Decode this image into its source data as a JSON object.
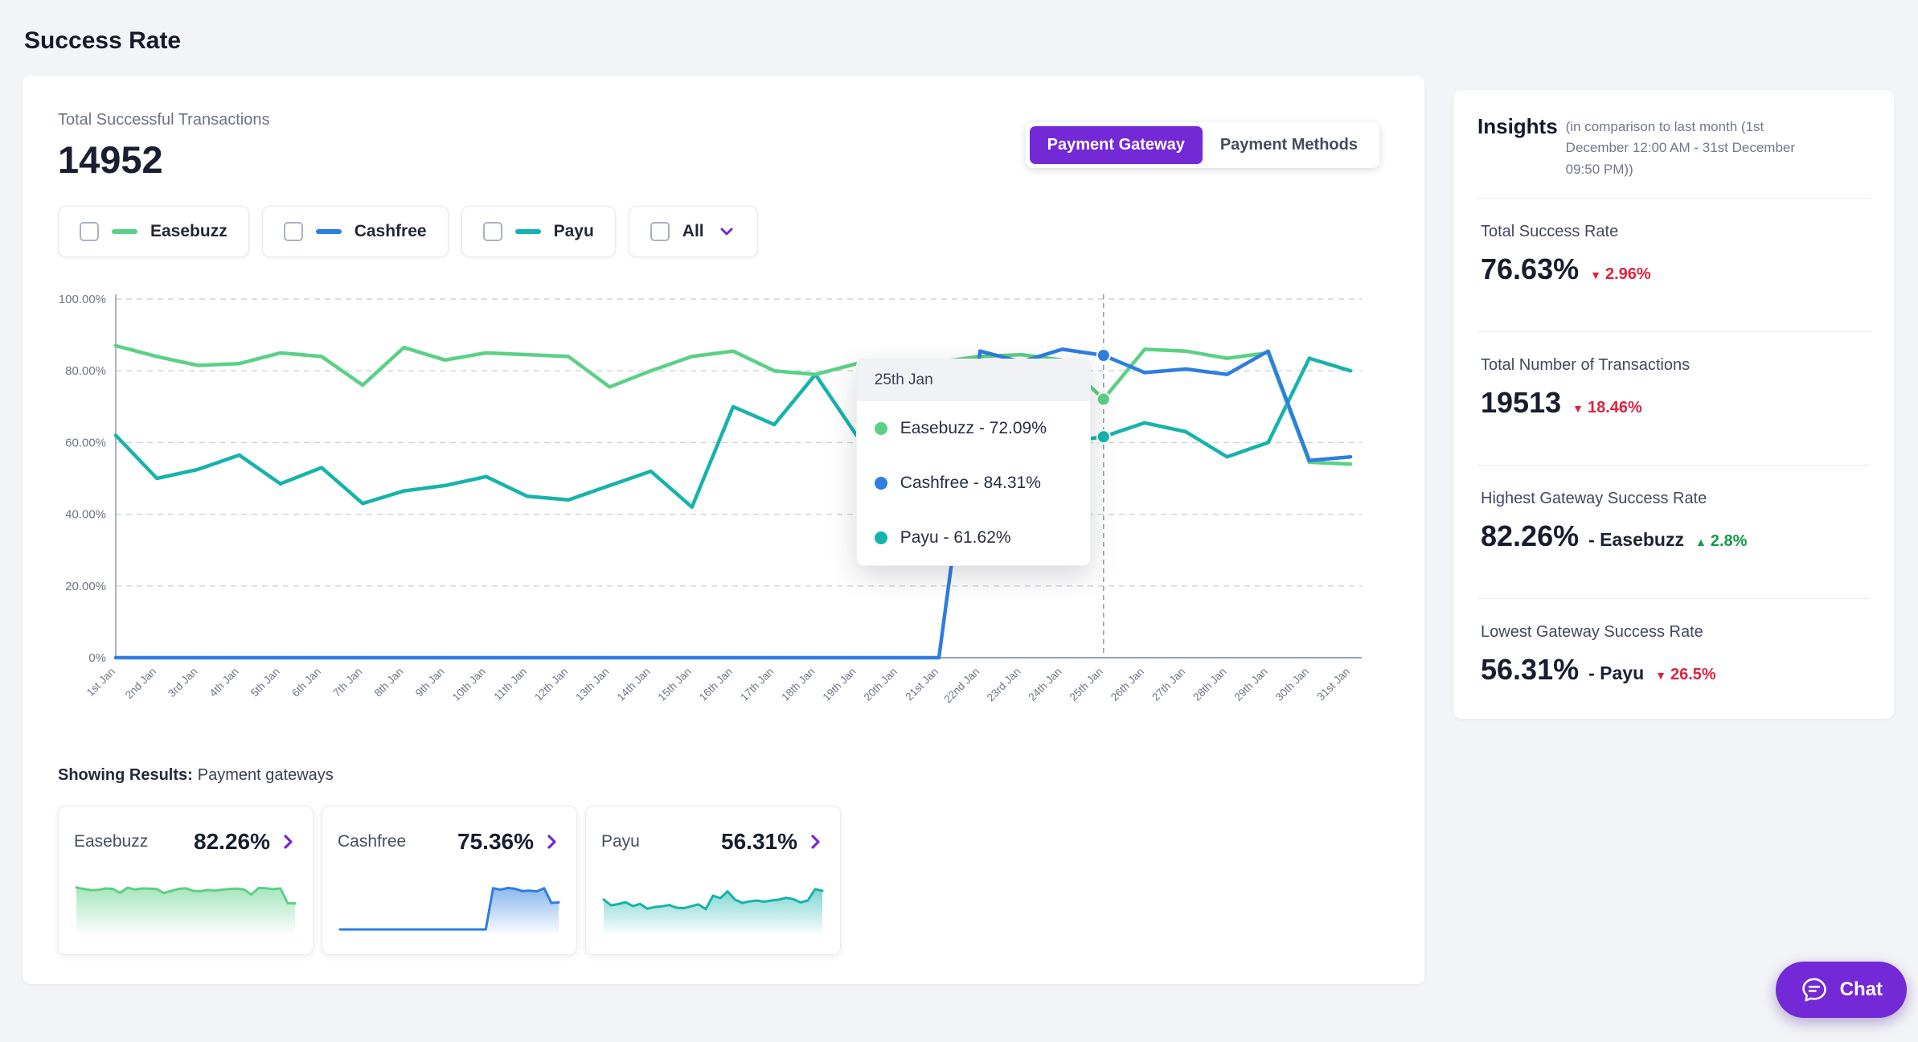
{
  "page": {
    "title": "Success Rate"
  },
  "summary": {
    "label": "Total Successful Transactions",
    "value": "14952"
  },
  "toggle": {
    "options": [
      "Payment Gateway",
      "Payment Methods"
    ],
    "active": "Payment Gateway"
  },
  "filters": [
    {
      "label": "Easebuzz",
      "color": "#5cd086",
      "checked": false
    },
    {
      "label": "Cashfree",
      "color": "#2e7de1",
      "checked": false
    },
    {
      "label": "Payu",
      "color": "#16b3ac",
      "checked": false
    },
    {
      "label": "All",
      "checked": false
    }
  ],
  "chart_data": {
    "type": "line",
    "title": "Success Rate per payment gateway, 1st Jan - 31st Jan",
    "x": [
      "1st Jan",
      "2nd Jan",
      "3rd Jan",
      "4th Jan",
      "5th Jan",
      "6th Jan",
      "7th Jan",
      "8th Jan",
      "9th Jan",
      "10th Jan",
      "11th Jan",
      "12th Jan",
      "13th Jan",
      "14th Jan",
      "15th Jan",
      "16th Jan",
      "17th Jan",
      "18th Jan",
      "19th Jan",
      "20th Jan",
      "21st Jan",
      "22nd Jan",
      "23rd Jan",
      "24th Jan",
      "25th Jan",
      "26th Jan",
      "27th Jan",
      "28th Jan",
      "29th Jan",
      "30th Jan",
      "31st Jan"
    ],
    "ylim": [
      0,
      100
    ],
    "yticks": [
      "0%",
      "20.00%",
      "40.00%",
      "60.00%",
      "80.00%",
      "100.00%"
    ],
    "grid": "dashed-horizontal",
    "series": [
      {
        "name": "Easebuzz",
        "color": "#5cd086",
        "values": [
          87,
          84,
          81.5,
          82,
          85,
          84,
          76,
          86.5,
          83,
          85,
          84.5,
          84,
          75.5,
          80,
          84,
          85.5,
          80,
          79,
          82,
          80.5,
          82.5,
          84,
          84.5,
          83,
          72.09,
          86,
          85.5,
          83.5,
          85,
          54.5,
          54
        ]
      },
      {
        "name": "Cashfree",
        "color": "#2e7de1",
        "values": [
          0,
          0,
          0,
          0,
          0,
          0,
          0,
          0,
          0,
          0,
          0,
          0,
          0,
          0,
          0,
          0,
          0,
          0,
          0,
          0,
          0,
          85.5,
          82.5,
          86,
          84.31,
          79.5,
          80.5,
          79,
          85.5,
          55,
          56
        ]
      },
      {
        "name": "Payu",
        "color": "#16b3ac",
        "values": [
          62,
          50,
          52.5,
          56.5,
          48.5,
          53,
          43,
          46.5,
          48,
          50.5,
          45,
          44,
          48,
          52,
          42,
          70,
          65,
          79,
          62,
          55,
          58,
          60,
          57.5,
          60,
          61.62,
          65.5,
          63,
          56,
          60,
          83.5,
          80
        ]
      }
    ],
    "tooltip": {
      "index": 24,
      "title": "25th Jan",
      "rows": [
        {
          "label": "Easebuzz - 72.09%",
          "color": "#5cd086"
        },
        {
          "label": "Cashfree - 84.31%",
          "color": "#2e7de1"
        },
        {
          "label": "Payu - 61.62%",
          "color": "#16b3ac"
        }
      ]
    }
  },
  "results": {
    "label": "Showing Results:",
    "value": "Payment gateways",
    "cards": [
      {
        "name": "Easebuzz",
        "value": "82.26%",
        "color": "#5cd086"
      },
      {
        "name": "Cashfree",
        "value": "75.36%",
        "color": "#2e7de1"
      },
      {
        "name": "Payu",
        "value": "56.31%",
        "color": "#16b3ac"
      }
    ]
  },
  "insights": {
    "title": "Insights",
    "subtitle": "(in comparison to last month (1st December 12:00 AM - 31st December 09:50 PM))",
    "sections": [
      {
        "label": "Total Success Rate",
        "value": "76.63%",
        "suffix": "",
        "delta": "2.96%",
        "direction": "down"
      },
      {
        "label": "Total Number of Transactions",
        "value": "19513",
        "suffix": "",
        "delta": "18.46%",
        "direction": "down"
      },
      {
        "label": "Highest Gateway Success Rate",
        "value": "82.26%",
        "suffix": "-  Easebuzz",
        "delta": "2.8%",
        "direction": "up"
      },
      {
        "label": "Lowest Gateway Success Rate",
        "value": "56.31%",
        "suffix": "-  Payu",
        "delta": "26.5%",
        "direction": "down"
      }
    ]
  },
  "icons": {
    "down": "▼",
    "up": "▲"
  },
  "chat": {
    "label": "Chat"
  },
  "colors": {
    "accent": "#7329d6",
    "negative": "#df2240",
    "positive": "#149a48"
  }
}
